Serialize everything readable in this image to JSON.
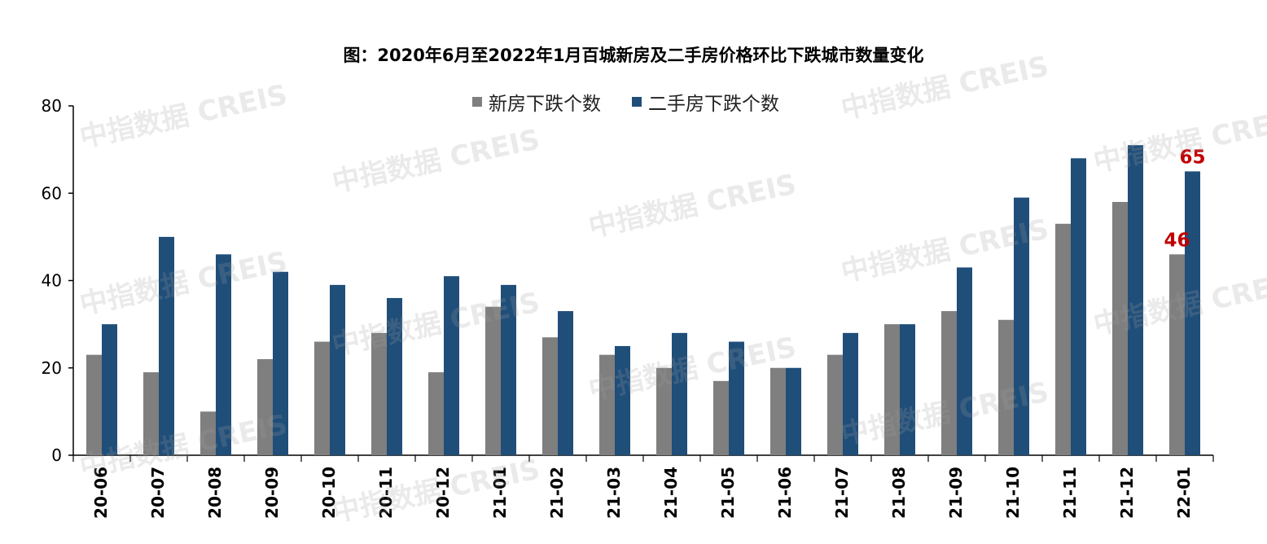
{
  "title": "图：2020年6月至2022年1月百城新房及二手房价格环比下跌城市数量变化",
  "watermark": "中指数据 CREIS",
  "colors": {
    "new": "#7f7f7f",
    "second": "#1f4e79",
    "label": "#c00000"
  },
  "chart_data": {
    "type": "bar",
    "title": "图：2020年6月至2022年1月百城新房及二手房价格环比下跌城市数量变化",
    "categories": [
      "20-06",
      "20-07",
      "20-08",
      "20-09",
      "20-10",
      "20-11",
      "20-12",
      "21-01",
      "21-02",
      "21-03",
      "21-04",
      "21-05",
      "21-06",
      "21-07",
      "21-08",
      "21-09",
      "21-10",
      "21-11",
      "21-12",
      "22-01"
    ],
    "series": [
      {
        "name": "新房下跌个数",
        "values": [
          23,
          19,
          10,
          22,
          26,
          28,
          19,
          34,
          27,
          23,
          20,
          17,
          20,
          23,
          30,
          33,
          31,
          53,
          58,
          46
        ]
      },
      {
        "name": "二手房下跌个数",
        "values": [
          30,
          50,
          46,
          42,
          39,
          36,
          41,
          39,
          33,
          25,
          28,
          26,
          20,
          28,
          30,
          43,
          59,
          68,
          71,
          65
        ]
      }
    ],
    "data_labels": [
      {
        "category": "22-01",
        "series": "新房下跌个数",
        "text": "46"
      },
      {
        "category": "22-01",
        "series": "二手房下跌个数",
        "text": "65"
      }
    ],
    "y_ticks": [
      "0",
      "20",
      "40",
      "60",
      "80"
    ],
    "ylim": [
      0,
      80
    ],
    "xlabel": "",
    "ylabel": "",
    "legend": "top-center",
    "grid": false
  }
}
